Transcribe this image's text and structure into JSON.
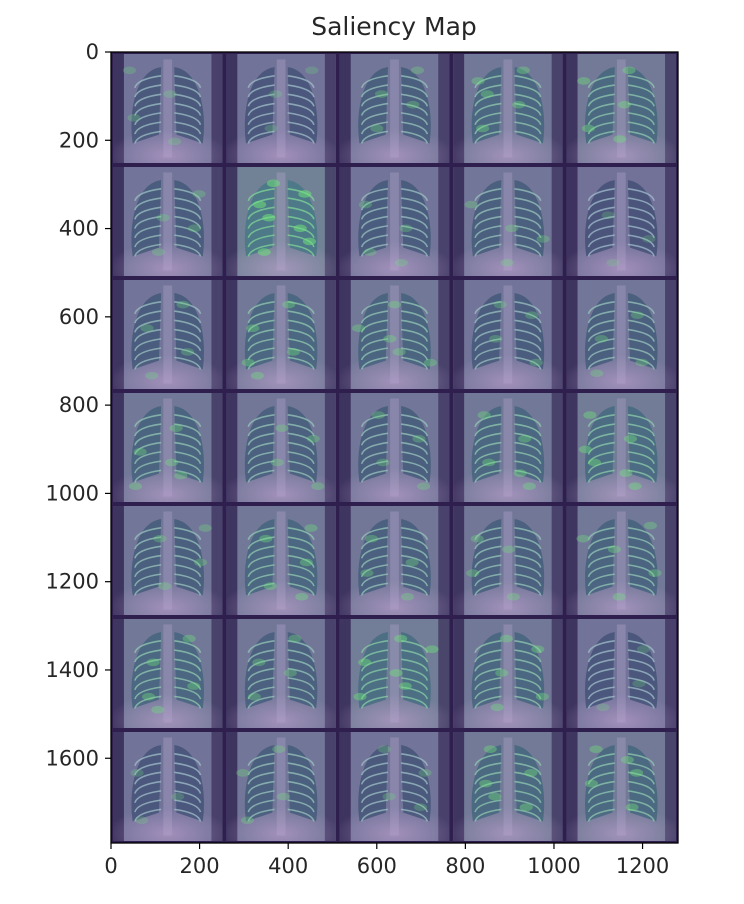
{
  "chart_data": {
    "type": "heatmap",
    "title": "Saliency Map",
    "xlabel": "",
    "ylabel": "",
    "xlim": [
      0,
      1280
    ],
    "ylim": [
      1792,
      0
    ],
    "x_ticks": [
      0,
      200,
      400,
      600,
      800,
      1000,
      1200
    ],
    "y_ticks": [
      0,
      200,
      400,
      600,
      800,
      1000,
      1200,
      1400,
      1600
    ],
    "grid": false,
    "colormap": "viridis",
    "image_grid": {
      "rows": 7,
      "cols": 5,
      "tile_size": 256
    },
    "colors": {
      "low": "#2e1f4e",
      "mid": "#6b6e98",
      "high": "#6ee27a",
      "frame": "#000000"
    },
    "tiles": [
      {
        "row": 0,
        "col": 0,
        "intensity": 0.25
      },
      {
        "row": 0,
        "col": 1,
        "intensity": 0.2
      },
      {
        "row": 0,
        "col": 2,
        "intensity": 0.35
      },
      {
        "row": 0,
        "col": 3,
        "intensity": 0.5
      },
      {
        "row": 0,
        "col": 4,
        "intensity": 0.55
      },
      {
        "row": 1,
        "col": 0,
        "intensity": 0.3
      },
      {
        "row": 1,
        "col": 1,
        "intensity": 0.85
      },
      {
        "row": 1,
        "col": 2,
        "intensity": 0.3
      },
      {
        "row": 1,
        "col": 3,
        "intensity": 0.35
      },
      {
        "row": 1,
        "col": 4,
        "intensity": 0.15
      },
      {
        "row": 2,
        "col": 0,
        "intensity": 0.3
      },
      {
        "row": 2,
        "col": 1,
        "intensity": 0.5
      },
      {
        "row": 2,
        "col": 2,
        "intensity": 0.45
      },
      {
        "row": 2,
        "col": 3,
        "intensity": 0.3
      },
      {
        "row": 2,
        "col": 4,
        "intensity": 0.35
      },
      {
        "row": 3,
        "col": 0,
        "intensity": 0.45
      },
      {
        "row": 3,
        "col": 1,
        "intensity": 0.4
      },
      {
        "row": 3,
        "col": 2,
        "intensity": 0.35
      },
      {
        "row": 3,
        "col": 3,
        "intensity": 0.5
      },
      {
        "row": 3,
        "col": 4,
        "intensity": 0.6
      },
      {
        "row": 4,
        "col": 0,
        "intensity": 0.35
      },
      {
        "row": 4,
        "col": 1,
        "intensity": 0.5
      },
      {
        "row": 4,
        "col": 2,
        "intensity": 0.4
      },
      {
        "row": 4,
        "col": 3,
        "intensity": 0.4
      },
      {
        "row": 4,
        "col": 4,
        "intensity": 0.45
      },
      {
        "row": 5,
        "col": 0,
        "intensity": 0.5
      },
      {
        "row": 5,
        "col": 1,
        "intensity": 0.4
      },
      {
        "row": 5,
        "col": 2,
        "intensity": 0.65
      },
      {
        "row": 5,
        "col": 3,
        "intensity": 0.5
      },
      {
        "row": 5,
        "col": 4,
        "intensity": 0.2
      },
      {
        "row": 6,
        "col": 0,
        "intensity": 0.2
      },
      {
        "row": 6,
        "col": 1,
        "intensity": 0.35
      },
      {
        "row": 6,
        "col": 2,
        "intensity": 0.25
      },
      {
        "row": 6,
        "col": 3,
        "intensity": 0.55
      },
      {
        "row": 6,
        "col": 4,
        "intensity": 0.55
      }
    ]
  }
}
